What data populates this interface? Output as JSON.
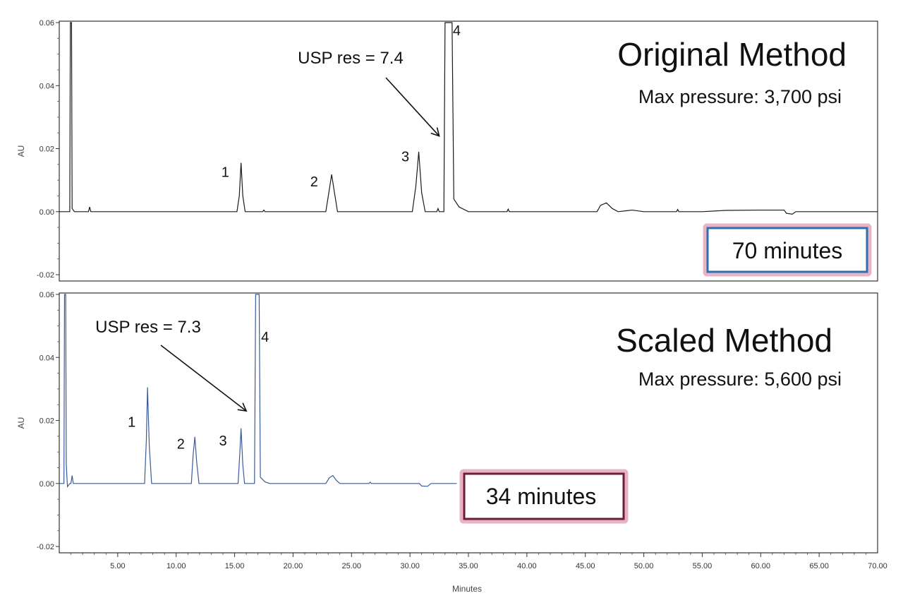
{
  "chart_data": [
    {
      "type": "line",
      "panel": "top",
      "ylabel": "AU",
      "xlabel": "",
      "yticks": [
        "0.06",
        "0.04",
        "0.02",
        "0.00",
        "-0.02"
      ],
      "ylim": [
        -0.022,
        0.06
      ],
      "xlim": [
        0,
        70
      ],
      "grid": false,
      "line_color": "#1a1a1a",
      "title": "Original Method",
      "subtitle": "Max pressure: 3,700 psi",
      "time_box": {
        "text": "70 minutes",
        "border_color": "#2e6fb0",
        "glow_color": "#e8b4c4"
      },
      "annotation": {
        "text": "USP res = 7.4",
        "arrow_to_x": 32.5,
        "arrow_to_y": 0.024
      },
      "peak_labels": [
        {
          "text": "1",
          "x": 14.2,
          "y": 0.011
        },
        {
          "text": "2",
          "x": 21.8,
          "y": 0.008
        },
        {
          "text": "3",
          "x": 29.6,
          "y": 0.016
        },
        {
          "text": "4",
          "x": 34.0,
          "y": 0.056
        }
      ],
      "series": [
        {
          "points": [
            [
              0,
              0.0
            ],
            [
              0.9,
              0.0
            ],
            [
              0.95,
              0.06
            ],
            [
              1.05,
              0.06
            ],
            [
              1.1,
              0.001
            ],
            [
              1.3,
              0.0
            ],
            [
              2.5,
              0.0
            ],
            [
              2.6,
              0.0015
            ],
            [
              2.7,
              0.0
            ],
            [
              15.2,
              0.0
            ],
            [
              15.4,
              0.005
            ],
            [
              15.55,
              0.0155
            ],
            [
              15.7,
              0.005
            ],
            [
              15.9,
              0.0
            ],
            [
              17.4,
              0.0
            ],
            [
              17.5,
              0.0005
            ],
            [
              17.6,
              0.0
            ],
            [
              22.8,
              0.0
            ],
            [
              23.1,
              0.007
            ],
            [
              23.3,
              0.0118
            ],
            [
              23.5,
              0.007
            ],
            [
              23.8,
              0.0
            ],
            [
              30.2,
              0.0
            ],
            [
              30.5,
              0.008
            ],
            [
              30.75,
              0.019
            ],
            [
              31.0,
              0.006
            ],
            [
              31.3,
              0.0
            ],
            [
              32.3,
              0.0
            ],
            [
              32.4,
              0.001
            ],
            [
              32.5,
              0.0
            ],
            [
              32.9,
              0.0
            ],
            [
              33.0,
              0.06
            ],
            [
              33.6,
              0.06
            ],
            [
              33.75,
              0.004
            ],
            [
              34.2,
              0.0015
            ],
            [
              35.0,
              0.0
            ],
            [
              38.3,
              0.0
            ],
            [
              38.4,
              0.0008
            ],
            [
              38.5,
              0.0
            ],
            [
              46.0,
              0.0
            ],
            [
              46.3,
              0.002
            ],
            [
              46.8,
              0.0028
            ],
            [
              47.3,
              0.001
            ],
            [
              47.8,
              0.0
            ],
            [
              49.0,
              0.0005
            ],
            [
              50.0,
              0.0
            ],
            [
              52.8,
              0.0
            ],
            [
              52.9,
              0.0007
            ],
            [
              53.0,
              0.0
            ],
            [
              55.0,
              0.0
            ],
            [
              57.0,
              0.0004
            ],
            [
              60.0,
              0.0005
            ],
            [
              62.0,
              0.0005
            ],
            [
              62.2,
              -0.0005
            ],
            [
              62.7,
              -0.0008
            ],
            [
              63.0,
              0.0
            ],
            [
              70.0,
              0.0
            ]
          ]
        }
      ]
    },
    {
      "type": "line",
      "panel": "bottom",
      "ylabel": "AU",
      "xlabel": "Minutes",
      "yticks": [
        "0.06",
        "0.04",
        "0.02",
        "0.00",
        "-0.02"
      ],
      "xticks": [
        "5.00",
        "10.00",
        "15.00",
        "20.00",
        "25.00",
        "30.00",
        "35.00",
        "40.00",
        "45.00",
        "50.00",
        "55.00",
        "60.00",
        "65.00",
        "70.00"
      ],
      "ylim": [
        -0.022,
        0.06
      ],
      "xlim": [
        0,
        70
      ],
      "grid": false,
      "line_color": "#3a5a9a",
      "title": "Scaled Method",
      "subtitle": "Max pressure: 5,600 psi",
      "time_box": {
        "text": "34 minutes",
        "border_color": "#6b1e3a",
        "glow_color": "#e8b4c4"
      },
      "annotation": {
        "text": "USP res = 7.3",
        "arrow_to_x": 16.0,
        "arrow_to_y": 0.023
      },
      "peak_labels": [
        {
          "text": "1",
          "x": 6.2,
          "y": 0.018
        },
        {
          "text": "2",
          "x": 10.4,
          "y": 0.011
        },
        {
          "text": "3",
          "x": 14.0,
          "y": 0.012
        },
        {
          "text": "4",
          "x": 17.6,
          "y": 0.045
        }
      ],
      "series": [
        {
          "points": [
            [
              0,
              0.0
            ],
            [
              0.4,
              0.0
            ],
            [
              0.45,
              0.06
            ],
            [
              0.55,
              0.06
            ],
            [
              0.6,
              0.006
            ],
            [
              0.7,
              -0.001
            ],
            [
              0.9,
              0.0
            ],
            [
              1.0,
              0.0
            ],
            [
              1.1,
              0.0025
            ],
            [
              1.2,
              0.0
            ],
            [
              7.3,
              0.0
            ],
            [
              7.45,
              0.014
            ],
            [
              7.55,
              0.0305
            ],
            [
              7.7,
              0.012
            ],
            [
              7.9,
              0.0
            ],
            [
              11.3,
              0.0
            ],
            [
              11.45,
              0.009
            ],
            [
              11.6,
              0.0148
            ],
            [
              11.75,
              0.007
            ],
            [
              11.95,
              0.0
            ],
            [
              15.3,
              0.0
            ],
            [
              15.45,
              0.01
            ],
            [
              15.55,
              0.0175
            ],
            [
              15.7,
              0.006
            ],
            [
              15.85,
              0.0
            ],
            [
              16.7,
              0.0
            ],
            [
              16.8,
              0.06
            ],
            [
              17.1,
              0.06
            ],
            [
              17.2,
              0.002
            ],
            [
              17.6,
              0.0005
            ],
            [
              18.0,
              0.0
            ],
            [
              22.8,
              0.0
            ],
            [
              23.1,
              0.0018
            ],
            [
              23.4,
              0.0025
            ],
            [
              23.7,
              0.001
            ],
            [
              24.0,
              0.0
            ],
            [
              26.5,
              0.0
            ],
            [
              26.6,
              0.0004
            ],
            [
              26.7,
              0.0
            ],
            [
              30.8,
              0.0
            ],
            [
              31.0,
              -0.0008
            ],
            [
              31.5,
              -0.0009
            ],
            [
              31.8,
              0.0
            ],
            [
              34.0,
              0.0
            ]
          ]
        }
      ]
    }
  ]
}
